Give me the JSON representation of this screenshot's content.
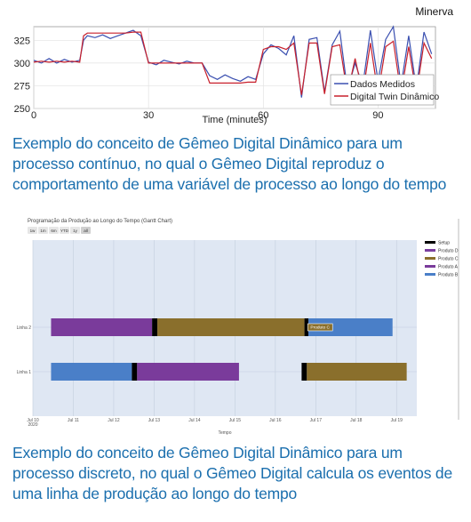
{
  "brand": "Minerva",
  "captions": {
    "top": "Exemplo do conceito de Gêmeo Digital Dinâmico para um processo contínuo, no qual o Gêmeo Digital reproduz o comportamento de uma variável de processo ao longo do tempo",
    "bottom": "Exemplo do conceito de Gêmeo Digital Dinâmico para um processo discreto, no qual o Gêmeo Digital calcula os eventos de uma linha de produção ao longo do tempo"
  },
  "chart_data": [
    {
      "type": "line",
      "xlabel": "Time (minutes)",
      "ylabel": "",
      "xlim": [
        0,
        105
      ],
      "ylim": [
        250,
        340
      ],
      "x_ticks": [
        0,
        30,
        60,
        90
      ],
      "y_ticks": [
        250,
        275,
        300,
        325
      ],
      "grid": true,
      "legend_position": "bottom-right",
      "series": [
        {
          "name": "Dados Medidos",
          "color": "#3a4fb0",
          "x": [
            0,
            2,
            4,
            6,
            8,
            10,
            12,
            13,
            14,
            16,
            18,
            20,
            22,
            24,
            26,
            28,
            30,
            32,
            34,
            36,
            38,
            40,
            42,
            44,
            46,
            48,
            50,
            52,
            54,
            56,
            58,
            60,
            62,
            64,
            66,
            68,
            70,
            72,
            74,
            76,
            78,
            80,
            82,
            84,
            86,
            88,
            90,
            92,
            94,
            96,
            98,
            100,
            102,
            104
          ],
          "y": [
            303,
            300,
            305,
            300,
            304,
            301,
            303,
            325,
            330,
            328,
            331,
            327,
            330,
            333,
            336,
            330,
            301,
            298,
            303,
            301,
            299,
            302,
            300,
            300,
            286,
            282,
            287,
            283,
            280,
            285,
            282,
            310,
            320,
            316,
            309,
            330,
            262,
            326,
            328,
            268,
            320,
            335,
            270,
            300,
            275,
            336,
            280,
            326,
            340,
            275,
            330,
            272,
            334,
            310
          ]
        },
        {
          "name": "Digital Twin Dinâmico",
          "color": "#c8202c",
          "x": [
            0,
            2,
            4,
            6,
            8,
            10,
            12,
            13,
            14,
            16,
            18,
            20,
            22,
            24,
            26,
            28,
            30,
            32,
            34,
            36,
            38,
            40,
            42,
            44,
            46,
            48,
            50,
            52,
            54,
            56,
            58,
            60,
            62,
            64,
            66,
            68,
            70,
            72,
            74,
            76,
            78,
            80,
            82,
            84,
            86,
            88,
            90,
            92,
            94,
            96,
            98,
            100,
            102,
            104
          ],
          "y": [
            301,
            302,
            301,
            302,
            301,
            302,
            301,
            330,
            333,
            333,
            333,
            333,
            333,
            333,
            334,
            334,
            300,
            300,
            300,
            300,
            300,
            300,
            300,
            300,
            278,
            278,
            278,
            278,
            278,
            279,
            279,
            315,
            318,
            318,
            315,
            322,
            265,
            322,
            322,
            266,
            318,
            320,
            266,
            305,
            266,
            322,
            266,
            318,
            324,
            266,
            318,
            266,
            322,
            305
          ]
        }
      ]
    },
    {
      "type": "gantt",
      "title": "Programação da Produção ao Longo do Tempo (Gantt Chart)",
      "xlabel": "Tempo",
      "x_ticks": [
        "Jul 10\n2020",
        "Jul 11",
        "Jul 12",
        "Jul 13",
        "Jul 14",
        "Jul 15",
        "Jul 16",
        "Jul 17",
        "Jul 18",
        "Jul 19"
      ],
      "xlim": [
        10,
        19.5
      ],
      "range_buttons": [
        "1w",
        "1m",
        "6m",
        "YTD",
        "1y",
        "all"
      ],
      "selected_range": "all",
      "rows": [
        "Linha 2",
        "Linha 1"
      ],
      "legend": [
        {
          "name": "Setup",
          "color": "#000000"
        },
        {
          "name": "Produto D",
          "color": "#7b3fa0"
        },
        {
          "name": "Produto C",
          "color": "#8a6f2c"
        },
        {
          "name": "Produto A",
          "color": "#7a3b9b"
        },
        {
          "name": "Produto B",
          "color": "#4a7fc8"
        }
      ],
      "tasks": [
        {
          "row": "Linha 2",
          "product": "Produto A",
          "start": 10.45,
          "end": 12.95,
          "color": "#7a3b9b"
        },
        {
          "row": "Linha 2",
          "product": "Setup",
          "start": 12.95,
          "end": 13.08,
          "color": "#000000"
        },
        {
          "row": "Linha 2",
          "product": "Produto C",
          "start": 13.08,
          "end": 16.72,
          "color": "#8a6f2c"
        },
        {
          "row": "Linha 2",
          "product": "Setup",
          "start": 16.72,
          "end": 16.82,
          "color": "#000000"
        },
        {
          "row": "Linha 2",
          "product": "Produto C",
          "start": 16.82,
          "end": 18.9,
          "color": "#4a7fc8"
        },
        {
          "row": "Linha 1",
          "product": "Produto B",
          "start": 10.45,
          "end": 12.45,
          "color": "#4a7fc8"
        },
        {
          "row": "Linha 1",
          "product": "Setup",
          "start": 12.45,
          "end": 12.58,
          "color": "#000000"
        },
        {
          "row": "Linha 1",
          "product": "Produto D",
          "start": 12.58,
          "end": 15.1,
          "color": "#7a3b9b"
        },
        {
          "row": "Linha 1",
          "product": "Setup",
          "start": 16.65,
          "end": 16.78,
          "color": "#000000"
        },
        {
          "row": "Linha 1",
          "product": "Produto C",
          "start": 16.78,
          "end": 19.25,
          "color": "#8a6f2c"
        }
      ],
      "hover_label": {
        "text": "Produto C",
        "at": 16.8,
        "row": "Linha 2"
      }
    }
  ]
}
